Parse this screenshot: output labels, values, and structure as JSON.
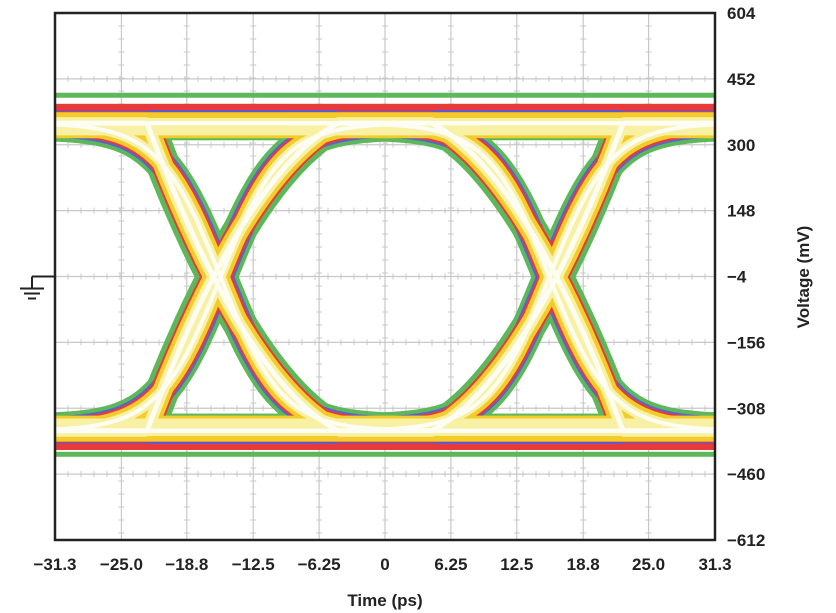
{
  "chart_data": {
    "type": "eye-diagram",
    "xlabel": "Time (ps)",
    "ylabel": "Voltage (mV)",
    "xlim": [
      -31.3,
      31.3
    ],
    "ylim": [
      -612,
      604
    ],
    "x_ticks": [
      {
        "value": -31.3,
        "label": "−31.3"
      },
      {
        "value": -25.0,
        "label": "−25.0"
      },
      {
        "value": -18.8,
        "label": "−18.8"
      },
      {
        "value": -12.5,
        "label": "−12.5"
      },
      {
        "value": -6.25,
        "label": "−6.25"
      },
      {
        "value": 0,
        "label": "0"
      },
      {
        "value": 6.25,
        "label": "6.25"
      },
      {
        "value": 12.5,
        "label": "12.5"
      },
      {
        "value": 18.8,
        "label": "18.8"
      },
      {
        "value": 25.0,
        "label": "25.0"
      },
      {
        "value": 31.3,
        "label": "31.3"
      }
    ],
    "y_ticks": [
      {
        "value": 604,
        "label": "604"
      },
      {
        "value": 452,
        "label": "452"
      },
      {
        "value": 300,
        "label": "300"
      },
      {
        "value": 148,
        "label": "148"
      },
      {
        "value": -4,
        "label": "−4"
      },
      {
        "value": -156,
        "label": "−156"
      },
      {
        "value": -308,
        "label": "−308"
      },
      {
        "value": -460,
        "label": "−460"
      },
      {
        "value": -612,
        "label": "−612"
      }
    ],
    "eye": {
      "high_level_mv": 350,
      "low_level_mv": -360,
      "crossing_times_ps": [
        -15.6,
        15.6
      ],
      "crossing_level_mv": -4,
      "high_band_mv": [
        260,
        420
      ],
      "low_band_mv": [
        -420,
        -265
      ]
    },
    "grid": true,
    "ground_marker_level_mv": -4
  },
  "colors": {
    "outer": "#5cb85a",
    "mid": "#f2cc2a",
    "inner": "#f8f1a4",
    "core": "#fdfdf3",
    "red": "#e83a3a",
    "blue": "#5a5bd6",
    "grid": "#c8c8c8",
    "frame": "#222222"
  }
}
